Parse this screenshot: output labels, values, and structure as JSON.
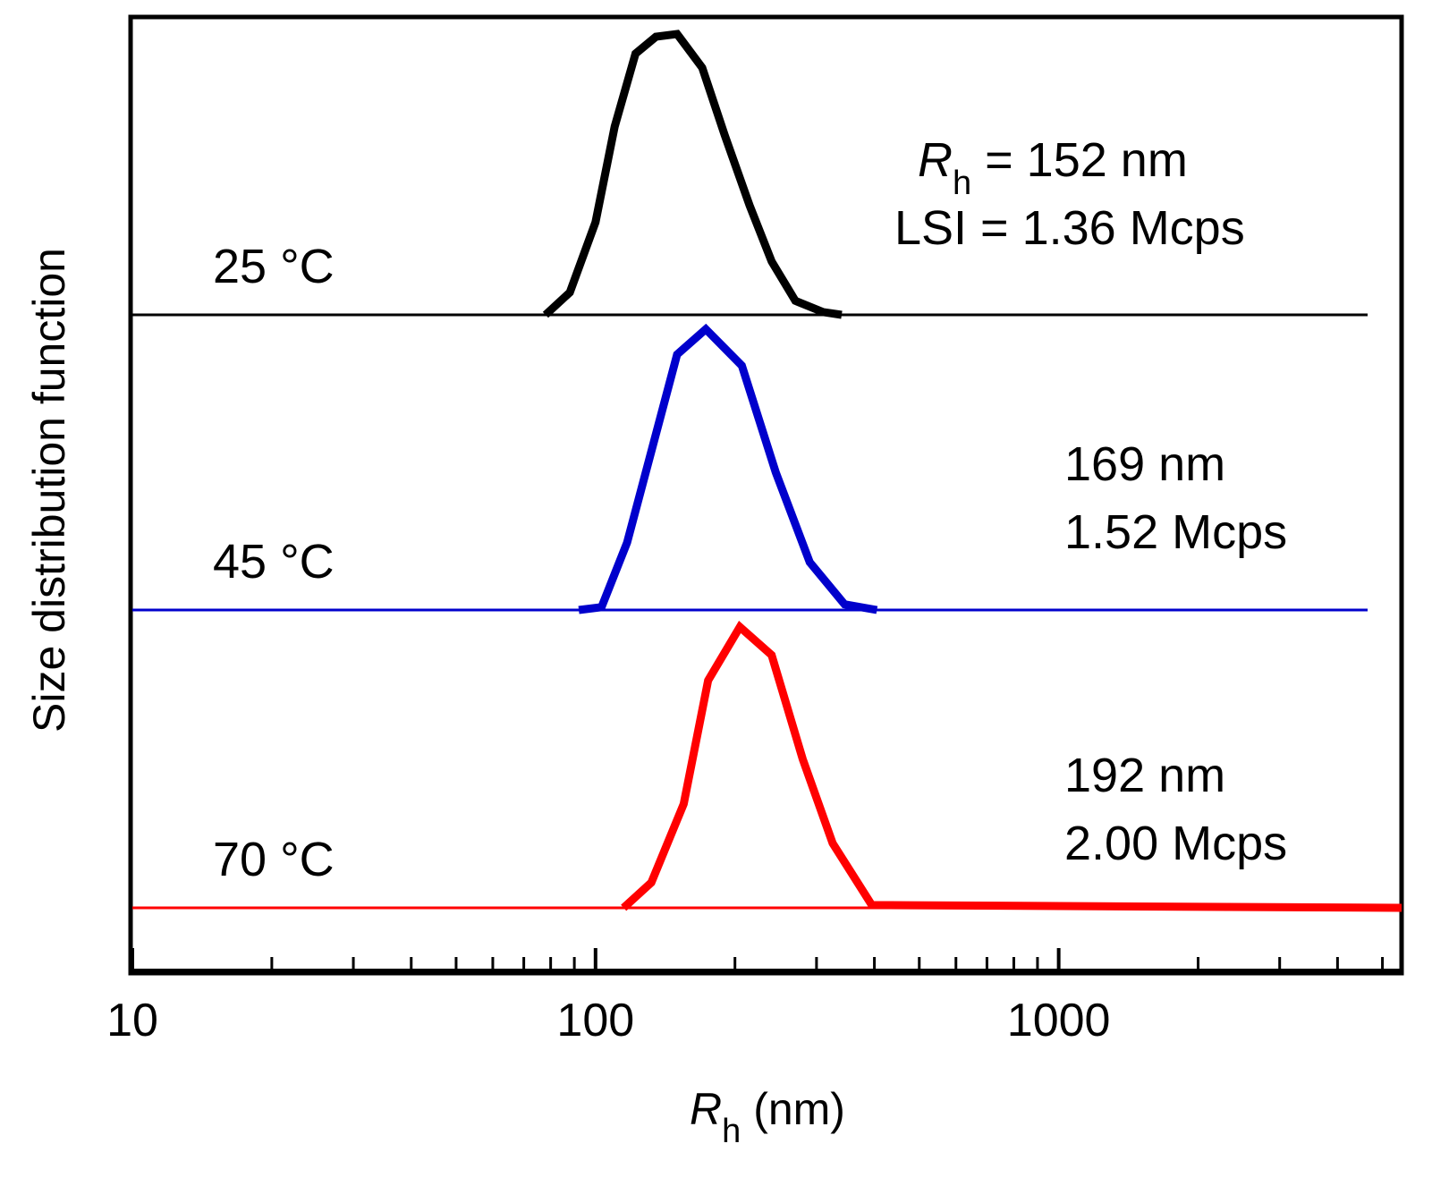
{
  "chart_data": {
    "type": "line",
    "title": "",
    "xlabel": {
      "main": "R",
      "sub": "h",
      "unit": " (nm)"
    },
    "ylabel": "Size distribution function",
    "xscale": "log",
    "xlim": [
      10,
      5500
    ],
    "xticks": [
      10,
      100,
      1000
    ],
    "xtick_labels": [
      "10",
      "100",
      "1000"
    ],
    "y_ticks_shown": false,
    "series": [
      {
        "name": "25 °C",
        "color": "#000000",
        "label": "25 °C",
        "annotation": {
          "line1_main": "R",
          "line1_sub": "h",
          "line1_rest": " = 152 nm",
          "line2": "LSI = 1.36 Mcps"
        },
        "x": [
          10,
          78,
          88,
          100,
          110,
          122,
          135,
          150,
          170,
          190,
          215,
          240,
          270,
          310,
          340,
          5500
        ],
        "y": [
          0,
          0,
          0.08,
          0.33,
          0.67,
          0.93,
          0.99,
          1.0,
          0.88,
          0.64,
          0.39,
          0.19,
          0.05,
          0.01,
          0,
          0
        ]
      },
      {
        "name": "45 °C",
        "color": "#0000cc",
        "label": "45 °C",
        "annotation": {
          "line1_main": "",
          "line1_sub": "",
          "line1_rest": "169 nm",
          "line2": "1.52 Mcps"
        },
        "x": [
          10,
          92,
          103,
          117,
          150,
          173,
          207,
          245,
          290,
          345,
          405,
          5500
        ],
        "y": [
          0,
          0,
          0.01,
          0.24,
          0.91,
          1.0,
          0.87,
          0.49,
          0.17,
          0.02,
          0,
          0
        ]
      },
      {
        "name": "70 °C",
        "color": "#ff0000",
        "label": "70 °C",
        "annotation": {
          "line1_main": "",
          "line1_sub": "",
          "line1_rest": "192 nm",
          "line2": "2.00 Mcps"
        },
        "x": [
          10,
          115,
          132,
          155,
          175,
          205,
          240,
          280,
          325,
          395,
          5500
        ],
        "y": [
          0,
          0,
          0.09,
          0.37,
          0.81,
          1.0,
          0.9,
          0.53,
          0.23,
          0.01,
          0
        ]
      }
    ]
  }
}
